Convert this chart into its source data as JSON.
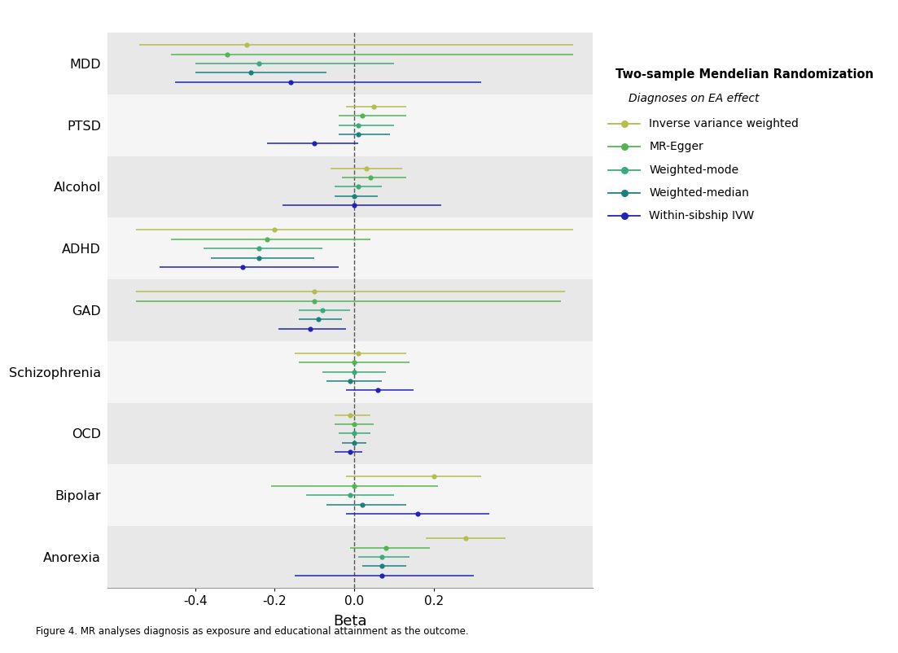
{
  "diagnoses": [
    "MDD",
    "PTSD",
    "Alcohol",
    "ADHD",
    "GAD",
    "Schizophrenia",
    "OCD",
    "Bipolar",
    "Anorexia"
  ],
  "methods": [
    "IVW",
    "MR-Egger",
    "Weighted-mode",
    "Weighted-median",
    "Within-sibship IVW"
  ],
  "method_labels": [
    "Inverse variance weighted",
    "MR-Egger",
    "Weighted-mode",
    "Weighted-median",
    "Within-sibship IVW"
  ],
  "colors": {
    "IVW": "#b5bd4b",
    "MR-Egger": "#52b552",
    "Weighted-mode": "#3aaa7a",
    "Weighted-median": "#1a8080",
    "Within-sibship IVW": "#2222bb"
  },
  "data": {
    "MDD": {
      "IVW": {
        "est": -0.27,
        "lo": -0.54,
        "hi": 0.55
      },
      "MR-Egger": {
        "est": -0.32,
        "lo": -0.46,
        "hi": 0.55
      },
      "Weighted-mode": {
        "est": -0.24,
        "lo": -0.4,
        "hi": 0.1
      },
      "Weighted-median": {
        "est": -0.26,
        "lo": -0.4,
        "hi": -0.07
      },
      "Within-sibship IVW": {
        "est": -0.16,
        "lo": -0.45,
        "hi": 0.32
      }
    },
    "PTSD": {
      "IVW": {
        "est": 0.05,
        "lo": -0.02,
        "hi": 0.13
      },
      "MR-Egger": {
        "est": 0.02,
        "lo": -0.04,
        "hi": 0.13
      },
      "Weighted-mode": {
        "est": 0.01,
        "lo": -0.04,
        "hi": 0.1
      },
      "Weighted-median": {
        "est": 0.01,
        "lo": -0.04,
        "hi": 0.09
      },
      "Within-sibship IVW": {
        "est": -0.1,
        "lo": -0.22,
        "hi": 0.01
      }
    },
    "Alcohol": {
      "IVW": {
        "est": 0.03,
        "lo": -0.06,
        "hi": 0.12
      },
      "MR-Egger": {
        "est": 0.04,
        "lo": -0.03,
        "hi": 0.13
      },
      "Weighted-mode": {
        "est": 0.01,
        "lo": -0.05,
        "hi": 0.07
      },
      "Weighted-median": {
        "est": 0.0,
        "lo": -0.05,
        "hi": 0.06
      },
      "Within-sibship IVW": {
        "est": 0.0,
        "lo": -0.18,
        "hi": 0.22
      }
    },
    "ADHD": {
      "IVW": {
        "est": -0.2,
        "lo": -0.55,
        "hi": 0.55
      },
      "MR-Egger": {
        "est": -0.22,
        "lo": -0.46,
        "hi": 0.04
      },
      "Weighted-mode": {
        "est": -0.24,
        "lo": -0.38,
        "hi": -0.08
      },
      "Weighted-median": {
        "est": -0.24,
        "lo": -0.36,
        "hi": -0.1
      },
      "Within-sibship IVW": {
        "est": -0.28,
        "lo": -0.49,
        "hi": -0.04
      }
    },
    "GAD": {
      "IVW": {
        "est": -0.1,
        "lo": -0.55,
        "hi": 0.53
      },
      "MR-Egger": {
        "est": -0.1,
        "lo": -0.55,
        "hi": 0.52
      },
      "Weighted-mode": {
        "est": -0.08,
        "lo": -0.14,
        "hi": -0.01
      },
      "Weighted-median": {
        "est": -0.09,
        "lo": -0.14,
        "hi": -0.03
      },
      "Within-sibship IVW": {
        "est": -0.11,
        "lo": -0.19,
        "hi": -0.02
      }
    },
    "Schizophrenia": {
      "IVW": {
        "est": 0.01,
        "lo": -0.15,
        "hi": 0.13
      },
      "MR-Egger": {
        "est": 0.0,
        "lo": -0.14,
        "hi": 0.14
      },
      "Weighted-mode": {
        "est": 0.0,
        "lo": -0.08,
        "hi": 0.08
      },
      "Weighted-median": {
        "est": -0.01,
        "lo": -0.07,
        "hi": 0.07
      },
      "Within-sibship IVW": {
        "est": 0.06,
        "lo": -0.02,
        "hi": 0.15
      }
    },
    "OCD": {
      "IVW": {
        "est": -0.01,
        "lo": -0.05,
        "hi": 0.04
      },
      "MR-Egger": {
        "est": 0.0,
        "lo": -0.05,
        "hi": 0.05
      },
      "Weighted-mode": {
        "est": 0.0,
        "lo": -0.04,
        "hi": 0.04
      },
      "Weighted-median": {
        "est": 0.0,
        "lo": -0.03,
        "hi": 0.03
      },
      "Within-sibship IVW": {
        "est": -0.01,
        "lo": -0.05,
        "hi": 0.02
      }
    },
    "Bipolar": {
      "IVW": {
        "est": 0.2,
        "lo": -0.02,
        "hi": 0.32
      },
      "MR-Egger": {
        "est": 0.0,
        "lo": -0.21,
        "hi": 0.21
      },
      "Weighted-mode": {
        "est": -0.01,
        "lo": -0.12,
        "hi": 0.1
      },
      "Weighted-median": {
        "est": 0.02,
        "lo": -0.07,
        "hi": 0.13
      },
      "Within-sibship IVW": {
        "est": 0.16,
        "lo": -0.02,
        "hi": 0.34
      }
    },
    "Anorexia": {
      "IVW": {
        "est": 0.28,
        "lo": 0.18,
        "hi": 0.38
      },
      "MR-Egger": {
        "est": 0.08,
        "lo": -0.01,
        "hi": 0.19
      },
      "Weighted-mode": {
        "est": 0.07,
        "lo": 0.01,
        "hi": 0.14
      },
      "Weighted-median": {
        "est": 0.07,
        "lo": 0.02,
        "hi": 0.13
      },
      "Within-sibship IVW": {
        "est": 0.07,
        "lo": -0.15,
        "hi": 0.3
      }
    }
  },
  "x_label": "Beta",
  "x_ticks": [
    -0.4,
    -0.2,
    0.0,
    0.2
  ],
  "x_lim": [
    -0.62,
    0.6
  ],
  "legend_title": "Two-sample Mendelian Randomization",
  "legend_subtitle": "Diagnoses on EA effect",
  "caption": "Figure 4. MR analyses diagnosis as exposure and educational attainment as the outcome.",
  "bg_color_even": "#e8e8e8",
  "bg_color_odd": "#f5f5f5",
  "method_offsets": [
    0.3,
    0.15,
    0.0,
    -0.15,
    -0.3
  ]
}
